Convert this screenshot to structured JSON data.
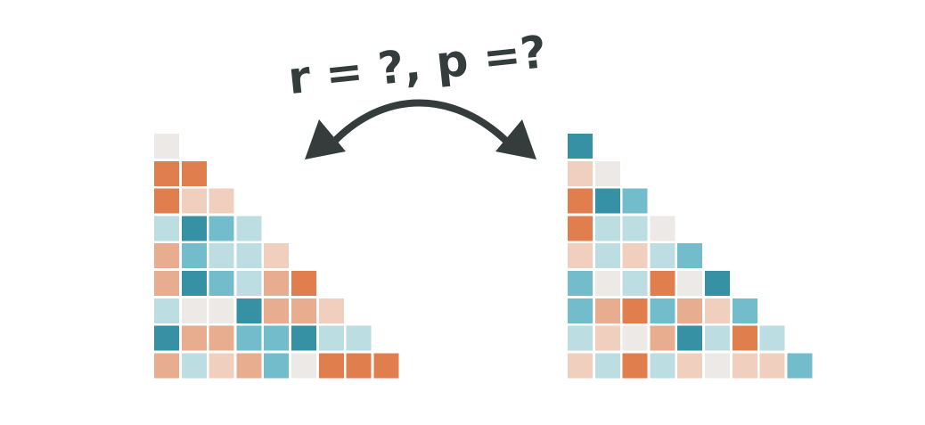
{
  "caption": "r = ?,  p =?",
  "colors": {
    "arrow": "#343c3c",
    "text": "#343c3c",
    "background": "#ffffff"
  },
  "palette": {
    "O3": "#e07f4d",
    "O2": "#e8ac8e",
    "O1": "#f0cfbf",
    "N": "#ede9e6",
    "B1": "#bcdde1",
    "B2": "#73bccb",
    "B3": "#3691a5"
  },
  "matrices": [
    {
      "name": "left-matrix",
      "rows": [
        [
          "N"
        ],
        [
          "O3",
          "O3"
        ],
        [
          "O3",
          "O1",
          "O1"
        ],
        [
          "B1",
          "B3",
          "B2",
          "B1"
        ],
        [
          "O2",
          "B2",
          "B1",
          "B1",
          "O1"
        ],
        [
          "O2",
          "B3",
          "B2",
          "B1",
          "O2",
          "O3"
        ],
        [
          "B1",
          "N",
          "N",
          "B3",
          "O2",
          "O2",
          "O1"
        ],
        [
          "B3",
          "O2",
          "O2",
          "B2",
          "B2",
          "B3",
          "B1",
          "B1"
        ],
        [
          "O2",
          "B1",
          "O1",
          "O2",
          "B2",
          "N",
          "O3",
          "O3",
          "O3"
        ]
      ]
    },
    {
      "name": "right-matrix",
      "rows": [
        [
          "B3"
        ],
        [
          "O1",
          "N"
        ],
        [
          "O3",
          "B3",
          "B2"
        ],
        [
          "O3",
          "B1",
          "B1",
          "N"
        ],
        [
          "O1",
          "B1",
          "O1",
          "B1",
          "B2"
        ],
        [
          "B2",
          "N",
          "B1",
          "O3",
          "N",
          "B3"
        ],
        [
          "B2",
          "O2",
          "O3",
          "B2",
          "O2",
          "O1",
          "B2"
        ],
        [
          "B1",
          "O1",
          "N",
          "O2",
          "B3",
          "B1",
          "O3",
          "B1"
        ],
        [
          "O1",
          "B1",
          "O3",
          "B1",
          "O1",
          "N",
          "O1",
          "O1",
          "B2"
        ]
      ]
    }
  ]
}
